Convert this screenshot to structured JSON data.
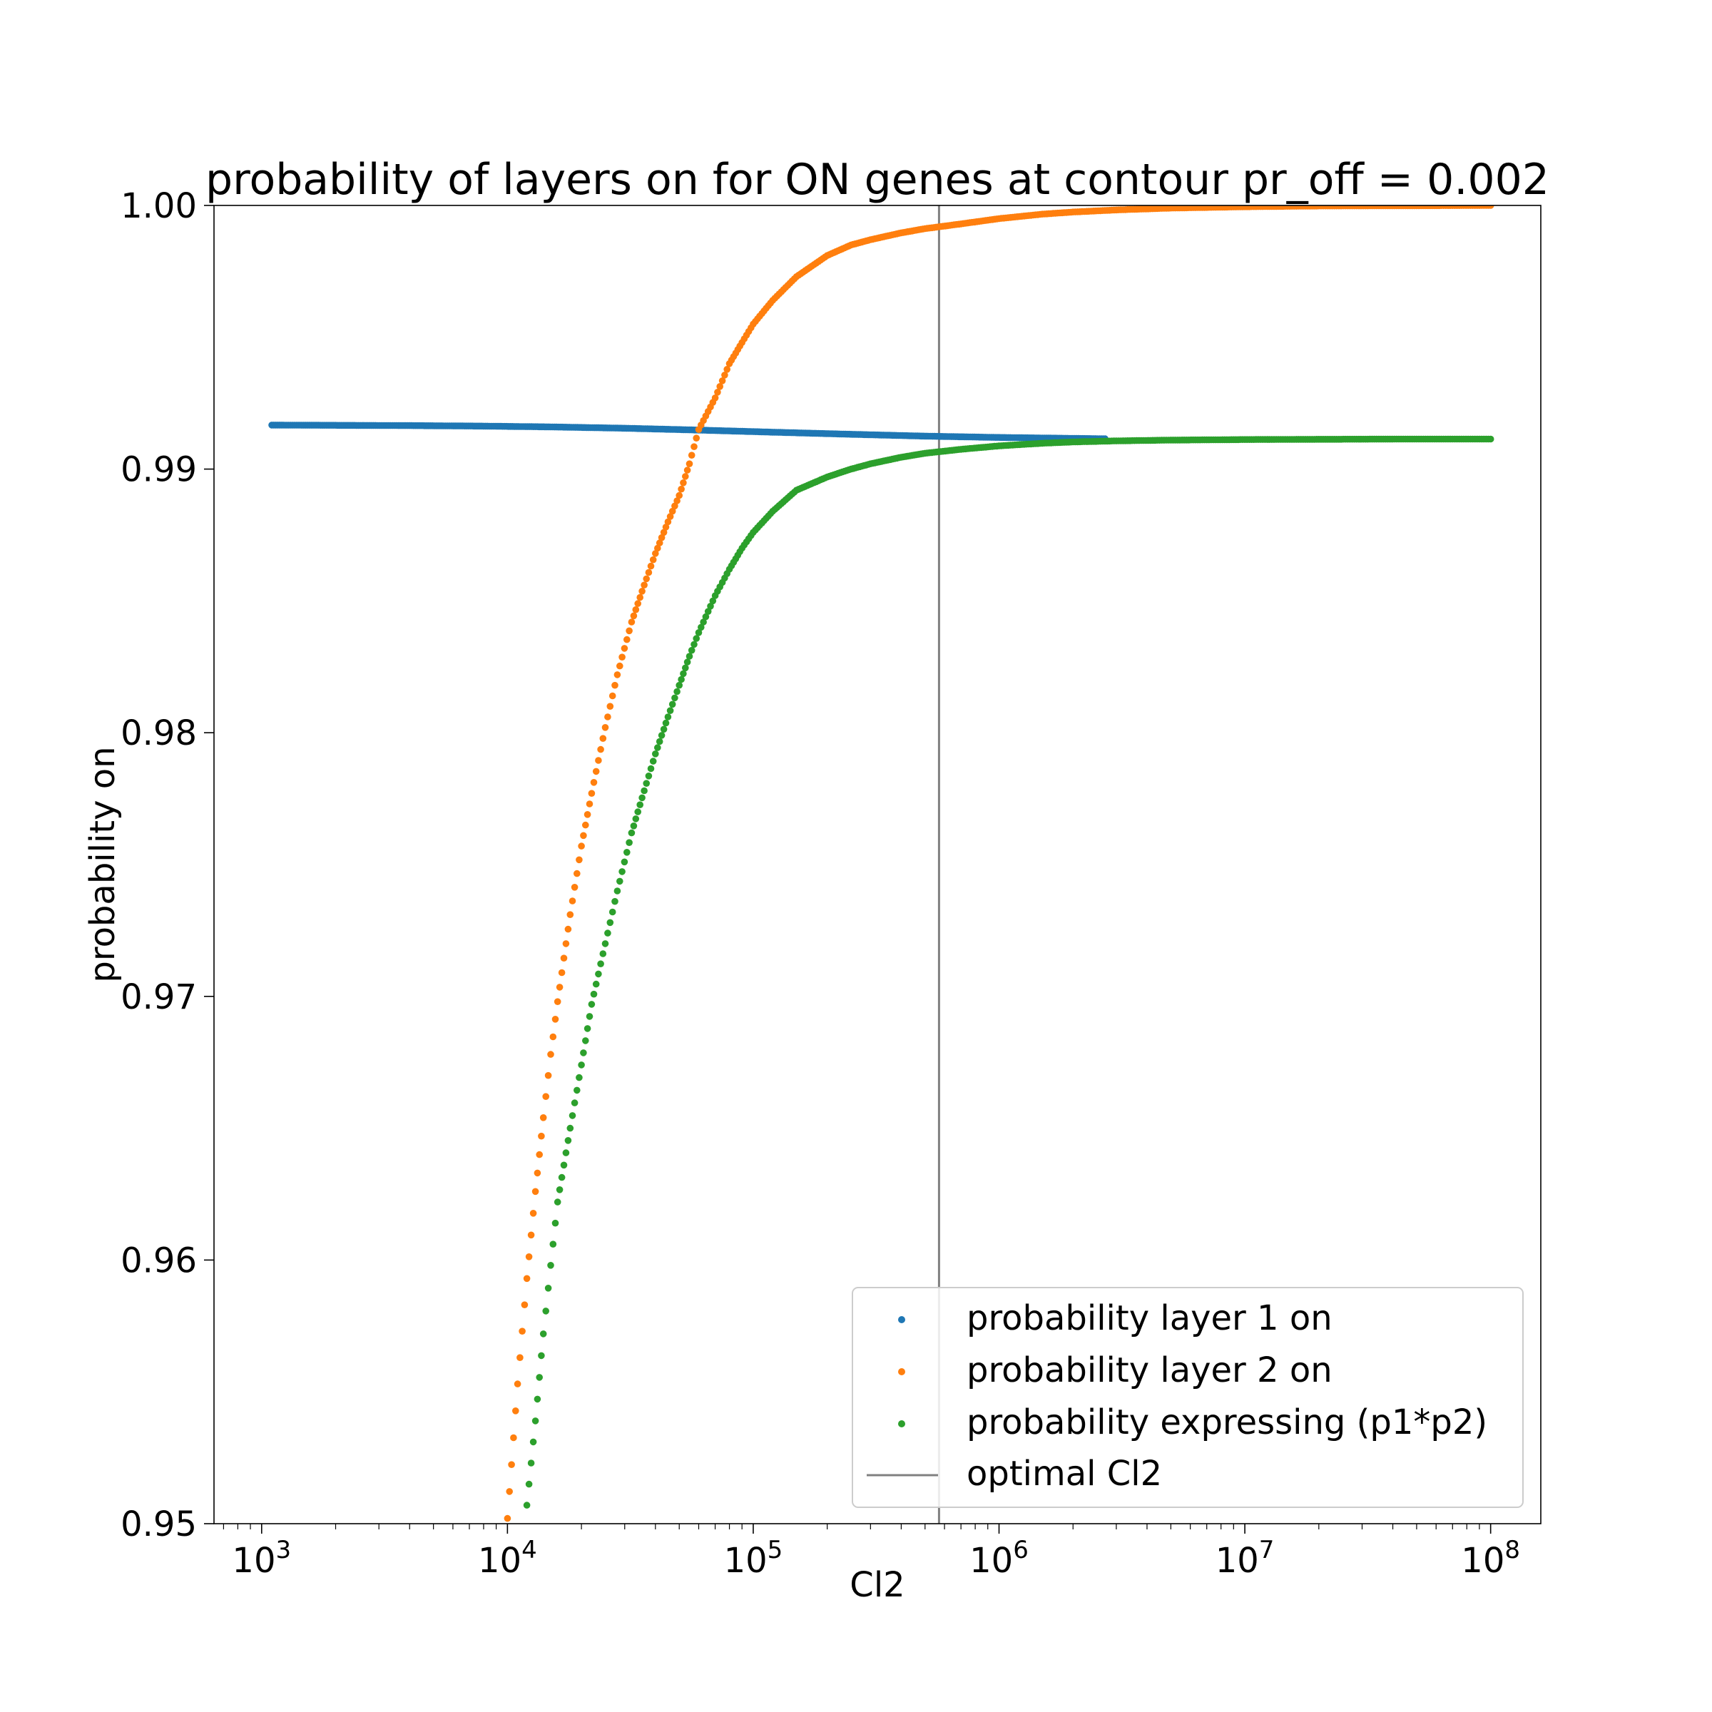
{
  "chart_data": {
    "type": "scatter",
    "title": "probability of layers on for ON genes at contour pr_off = 0.002",
    "xlabel": "Cl2",
    "ylabel": "probability on",
    "xscale": "log",
    "xlim": [
      640,
      160000000
    ],
    "ylim": [
      0.95,
      1.0
    ],
    "xticks": [
      1000,
      10000,
      100000,
      1000000,
      10000000,
      100000000
    ],
    "xtick_labels": [
      {
        "base": "10",
        "exp": "3"
      },
      {
        "base": "10",
        "exp": "4"
      },
      {
        "base": "10",
        "exp": "5"
      },
      {
        "base": "10",
        "exp": "6"
      },
      {
        "base": "10",
        "exp": "7"
      },
      {
        "base": "10",
        "exp": "8"
      }
    ],
    "yticks": [
      0.95,
      0.96,
      0.97,
      0.98,
      0.99,
      1.0
    ],
    "ytick_labels": [
      "0.95",
      "0.96",
      "0.97",
      "0.98",
      "0.99",
      "1.00"
    ],
    "grid": false,
    "series": [
      {
        "name": "probability layer 1 on",
        "color": "#1f77b4",
        "x": [
          1100,
          2000,
          4000,
          8000,
          15000,
          30000,
          60000,
          120000,
          250000,
          500000,
          1000000,
          2700000
        ],
        "y": [
          0.99167,
          0.99166,
          0.99165,
          0.99163,
          0.9916,
          0.99155,
          0.99148,
          0.9914,
          0.99132,
          0.99125,
          0.9912,
          0.99115
        ]
      },
      {
        "name": "probability layer 2 on",
        "color": "#ff7f0e",
        "x": [
          10000,
          11000,
          12000,
          13000,
          14000,
          15000,
          16000,
          18000,
          20000,
          22000,
          25000,
          28000,
          32000,
          36000,
          40000,
          45000,
          50000,
          55000,
          60000,
          70000,
          80000,
          90000,
          100000,
          120000,
          150000,
          200000,
          250000,
          300000,
          400000,
          500000,
          700000,
          1000000,
          1500000,
          2000000,
          3000000,
          5000000,
          10000000,
          20000000,
          50000000,
          100000000
        ],
        "y": [
          0.9502,
          0.9553,
          0.9593,
          0.9626,
          0.9654,
          0.9678,
          0.9698,
          0.9731,
          0.9757,
          0.9777,
          0.9802,
          0.9822,
          0.9842,
          0.9856,
          0.9868,
          0.988,
          0.989,
          0.9902,
          0.9915,
          0.9927,
          0.994,
          0.9948,
          0.9955,
          0.9964,
          0.9973,
          0.9981,
          0.9985,
          0.9987,
          0.99896,
          0.99912,
          0.9993,
          0.9995,
          0.99967,
          0.99975,
          0.99983,
          0.9999,
          0.99995,
          0.99998,
          0.99999,
          1.0
        ]
      },
      {
        "name": "probability expressing (p1*p2)",
        "color": "#2ca02c",
        "x": [
          12000,
          13000,
          14000,
          15000,
          16000,
          18000,
          20000,
          22000,
          25000,
          28000,
          32000,
          36000,
          40000,
          45000,
          50000,
          55000,
          60000,
          70000,
          80000,
          90000,
          100000,
          120000,
          150000,
          200000,
          250000,
          300000,
          400000,
          500000,
          700000,
          1000000,
          1500000,
          2000000,
          3000000,
          5000000,
          10000000,
          20000000,
          50000000,
          100000000
        ],
        "y": [
          0.9507,
          0.9539,
          0.9572,
          0.9598,
          0.9622,
          0.965,
          0.9674,
          0.9697,
          0.972,
          0.974,
          0.9762,
          0.9778,
          0.9792,
          0.9806,
          0.9818,
          0.9829,
          0.9838,
          0.9852,
          0.9862,
          0.987,
          0.9876,
          0.9884,
          0.9892,
          0.9897,
          0.99,
          0.9902,
          0.99045,
          0.9906,
          0.99075,
          0.99088,
          0.99098,
          0.99103,
          0.99107,
          0.9911,
          0.99112,
          0.99113,
          0.99114,
          0.99114
        ]
      }
    ],
    "vline": {
      "name": "optimal Cl2",
      "x": 570000,
      "color": "#808080"
    },
    "legend": {
      "placement": "lower-right",
      "entries": [
        {
          "label": "probability layer 1 on",
          "color": "#1f77b4",
          "kind": "marker"
        },
        {
          "label": "probability layer 2 on",
          "color": "#ff7f0e",
          "kind": "marker"
        },
        {
          "label": "probability expressing (p1*p2)",
          "color": "#2ca02c",
          "kind": "marker"
        },
        {
          "label": "optimal Cl2",
          "color": "#808080",
          "kind": "line"
        }
      ]
    }
  }
}
